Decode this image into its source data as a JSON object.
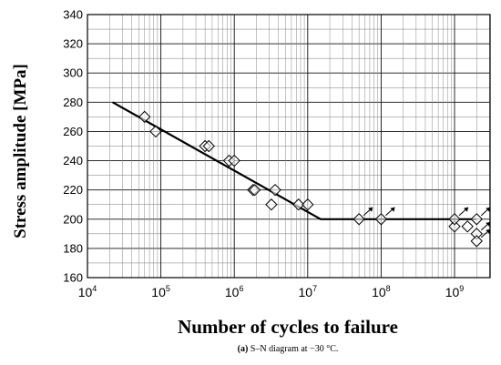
{
  "chart_data": {
    "type": "scatter",
    "x_scale": "log",
    "xlabel": "Number of cycles to failure",
    "ylabel": "Stress amplitude [MPa]",
    "ylim": [
      160,
      340
    ],
    "xlim": [
      10000,
      3000000000
    ],
    "y_ticks": [
      "160",
      "180",
      "200",
      "220",
      "240",
      "260",
      "280",
      "300",
      "320",
      "340"
    ],
    "x_ticks": [
      {
        "base": "10",
        "exp": "4"
      },
      {
        "base": "10",
        "exp": "5"
      },
      {
        "base": "10",
        "exp": "6"
      },
      {
        "base": "10",
        "exp": "7"
      },
      {
        "base": "10",
        "exp": "8"
      },
      {
        "base": "10",
        "exp": "9"
      }
    ],
    "grid": true,
    "series": [
      {
        "marker": "diamond",
        "points": [
          {
            "x": 60000,
            "y": 270
          },
          {
            "x": 85000,
            "y": 260
          },
          {
            "x": 400000,
            "y": 250
          },
          {
            "x": 450000,
            "y": 250
          },
          {
            "x": 850000,
            "y": 240
          },
          {
            "x": 1000000,
            "y": 240
          },
          {
            "x": 1800000,
            "y": 220
          },
          {
            "x": 1900000,
            "y": 220
          },
          {
            "x": 3200000,
            "y": 210
          },
          {
            "x": 3600000,
            "y": 220
          },
          {
            "x": 7500000,
            "y": 210
          },
          {
            "x": 10000000,
            "y": 210
          },
          {
            "x": 50000000,
            "y": 200,
            "runout": true
          },
          {
            "x": 100000000,
            "y": 200,
            "runout": true
          },
          {
            "x": 1000000000,
            "y": 195
          },
          {
            "x": 1000000000,
            "y": 200,
            "runout": true
          },
          {
            "x": 1500000000,
            "y": 195
          },
          {
            "x": 2000000000,
            "y": 200,
            "runout": true
          },
          {
            "x": 2000000000,
            "y": 190,
            "runout": true
          },
          {
            "x": 2000000000,
            "y": 185,
            "runout": true
          }
        ]
      }
    ],
    "fit_line": [
      {
        "x": 22000,
        "y": 280
      },
      {
        "x": 15000000,
        "y": 200
      },
      {
        "x": 2000000000,
        "y": 200
      }
    ]
  },
  "caption": {
    "label": "(a)",
    "text": " S–N diagram at −30 °C."
  }
}
